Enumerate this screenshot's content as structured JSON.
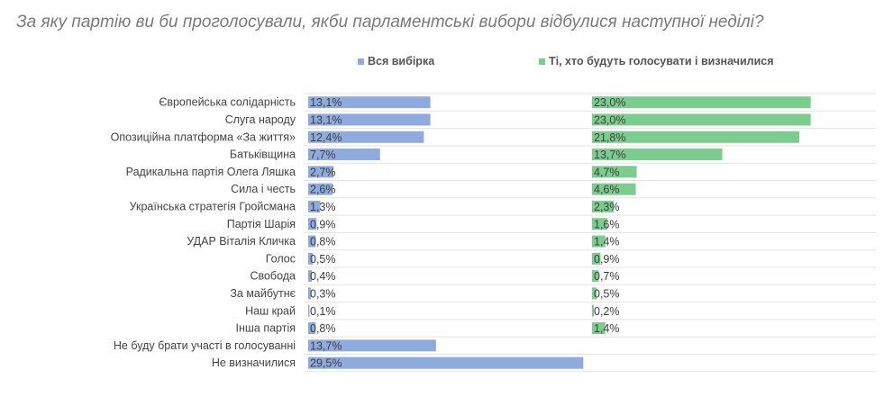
{
  "chart_data": {
    "type": "bar",
    "orientation": "horizontal",
    "layout": "two panels side by side",
    "title": "За яку партію ви би проголосували, якби парламентські вибори відбулися наступної неділі?",
    "categories": [
      "Європейська солідарність",
      "Слуга народу",
      "Опозиційна платформа «За життя»",
      "Батьківщина",
      "Радикальна партія Олега Ляшка",
      "Сила і честь",
      "Українська стратегія Гройсмана",
      "Партія Шарія",
      "УДАР Віталія Кличка",
      "Голос",
      "Свобода",
      "За майбутнє",
      "Наш край",
      "Інша партія",
      "Не буду брати участі в голосуванні",
      "Не визначилися"
    ],
    "series": [
      {
        "name": "Вся вибірка",
        "color": "#8faadc",
        "values": [
          13.1,
          13.1,
          12.4,
          7.7,
          2.7,
          2.6,
          1.3,
          0.9,
          0.8,
          0.5,
          0.4,
          0.3,
          0.1,
          0.8,
          13.7,
          29.5
        ],
        "labels": [
          "13,1%",
          "13,1%",
          "12,4%",
          "7,7%",
          "2,7%",
          "2,6%",
          "1,3%",
          "0,9%",
          "0,8%",
          "0,5%",
          "0,4%",
          "0,3%",
          "0,1%",
          "0,8%",
          "13,7%",
          "29,5%"
        ]
      },
      {
        "name": "Ті, хто будуть голосувати і визначилися",
        "color": "#7dcc8f",
        "values": [
          23.0,
          23.0,
          21.8,
          13.7,
          4.7,
          4.6,
          2.3,
          1.6,
          1.4,
          0.9,
          0.7,
          0.5,
          0.2,
          1.4,
          null,
          null
        ],
        "labels": [
          "23,0%",
          "23,0%",
          "21,8%",
          "13,7%",
          "4,7%",
          "4,6%",
          "2,3%",
          "1,6%",
          "1,4%",
          "0,9%",
          "0,7%",
          "0,5%",
          "0,2%",
          "1,4%",
          "",
          ""
        ]
      }
    ],
    "legend": "top",
    "grid": true
  }
}
